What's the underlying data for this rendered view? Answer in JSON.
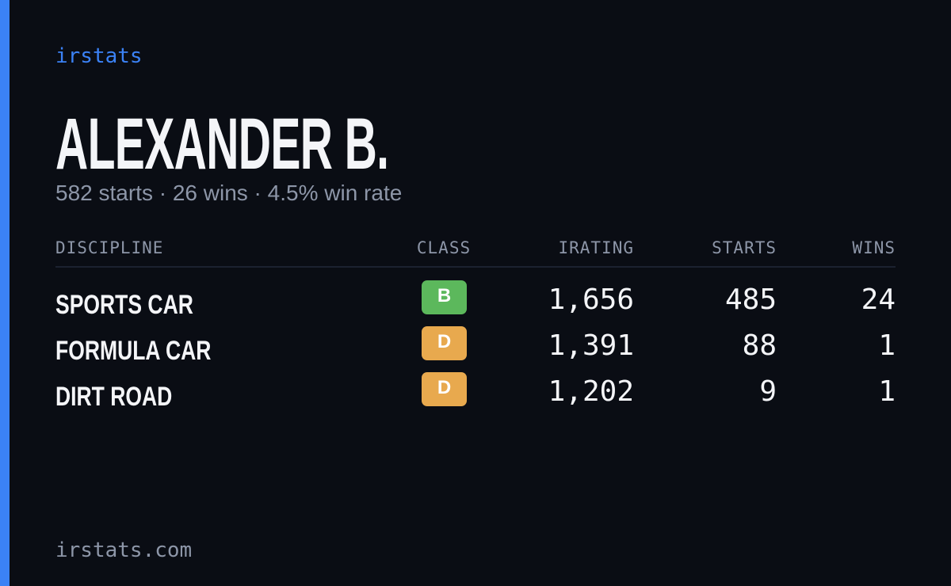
{
  "brand": "irstats",
  "driver": {
    "name": "ALEXANDER B.",
    "summary": "582 starts · 26 wins · 4.5% win rate"
  },
  "table": {
    "headers": [
      "DISCIPLINE",
      "CLASS",
      "IRATING",
      "STARTS",
      "WINS"
    ],
    "rows": [
      {
        "discipline": "SPORTS CAR",
        "class": "B",
        "class_color": "#5cb85c",
        "irating": "1,656",
        "starts": "485",
        "wins": "24"
      },
      {
        "discipline": "FORMULA CAR",
        "class": "D",
        "class_color": "#e8a94e",
        "irating": "1,391",
        "starts": "88",
        "wins": "1"
      },
      {
        "discipline": "DIRT ROAD",
        "class": "D",
        "class_color": "#e8a94e",
        "irating": "1,202",
        "starts": "9",
        "wins": "1"
      }
    ]
  },
  "footer": "irstats.com"
}
